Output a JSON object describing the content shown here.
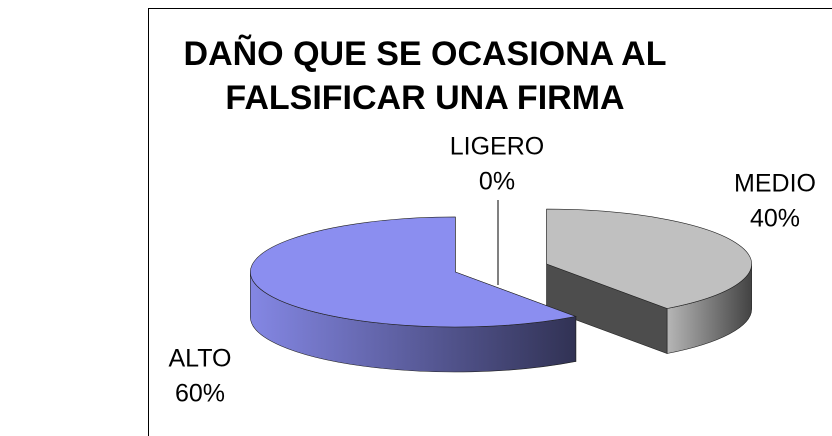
{
  "chart_data": {
    "type": "pie3d",
    "title": [
      "DAÑO QUE SE OCASIONA AL",
      "FALSIFICAR UNA FIRMA"
    ],
    "categories": [
      "LIGERO",
      "MEDIO",
      "ALTO"
    ],
    "values": [
      0,
      40,
      60
    ],
    "value_labels": [
      "0%",
      "40%",
      "60%"
    ],
    "colors": [
      "#ffffcc",
      "#c0c0c0",
      "#8b8ef0"
    ]
  }
}
